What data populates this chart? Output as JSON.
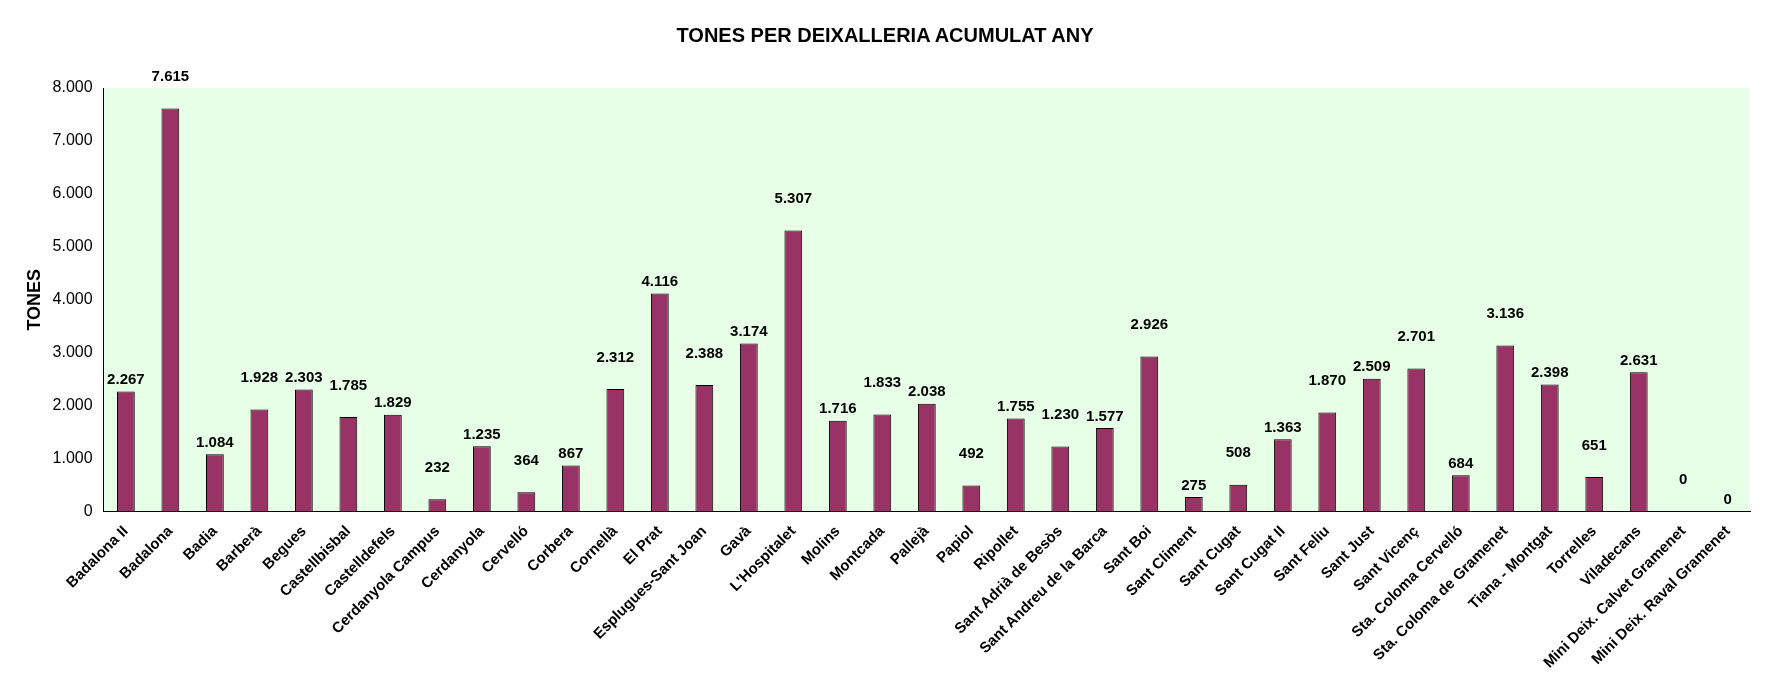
{
  "chart_data": {
    "type": "bar",
    "title": "TONES PER DEIXALLERIA ACUMULAT ANY",
    "ylabel": "TONES",
    "categories": [
      "Badalona II",
      "Badalona",
      "Badia",
      "Barberà",
      "Begues",
      "Castellbisbal",
      "Castelldefels",
      "Cerdanyola Campus",
      "Cerdanyola",
      "Cervelló",
      "Corbera",
      "Cornellà",
      "El Prat",
      "Esplugues-Sant Joan",
      "Gavà",
      "L'Hospitalet",
      "Molins",
      "Montcada",
      "Pallejà",
      "Papiol",
      "Ripollet",
      "Sant Adrià de Besòs",
      "Sant Andreu de la Barca",
      "Sant Boi",
      "Sant Climent",
      "Sant Cugat",
      "Sant Cugat II",
      "Sant Feliu",
      "Sant Just",
      "Sant Vicenç",
      "Sta. Coloma Cervelló",
      "Sta. Coloma de Gramenet",
      "Tiana - Montgat",
      "Torrelles",
      "Viladecans",
      "Mini Deix. Calvet Gramenet",
      "Mini Deix. Raval Gramenet"
    ],
    "values": [
      2267,
      7615,
      1084,
      1928,
      2303,
      1785,
      1829,
      232,
      1235,
      364,
      867,
      2312,
      4116,
      2388,
      3174,
      5307,
      1716,
      1833,
      2038,
      492,
      1755,
      1230,
      1577,
      2926,
      275,
      508,
      1363,
      1870,
      2509,
      2701,
      684,
      3136,
      2398,
      651,
      2631,
      0,
      0
    ],
    "value_labels": [
      "2.267",
      "7.615",
      "1.084",
      "1.928",
      "2.303",
      "1.785",
      "1.829",
      "232",
      "1.235",
      "364",
      "867",
      "2.312",
      "4.116",
      "2.388",
      "3.174",
      "5.307",
      "1.716",
      "1.833",
      "2.038",
      "492",
      "1.755",
      "1.230",
      "1.577",
      "2.926",
      "275",
      "508",
      "1.363",
      "1.870",
      "2.509",
      "2.701",
      "684",
      "3.136",
      "2.398",
      "651",
      "2.631",
      "0",
      "0"
    ],
    "color": "#993366",
    "ylim": [
      0,
      8000
    ],
    "yticks": [
      {
        "value": 0,
        "label": "0"
      },
      {
        "value": 1000,
        "label": "1.000"
      },
      {
        "value": 2000,
        "label": "2.000"
      },
      {
        "value": 3000,
        "label": "3.000"
      },
      {
        "value": 4000,
        "label": "4.000"
      },
      {
        "value": 5000,
        "label": "5.000"
      },
      {
        "value": 6000,
        "label": "6.000"
      },
      {
        "value": 7000,
        "label": "7.000"
      },
      {
        "value": 8000,
        "label": "8.000"
      }
    ],
    "grid": false,
    "legend": false
  }
}
